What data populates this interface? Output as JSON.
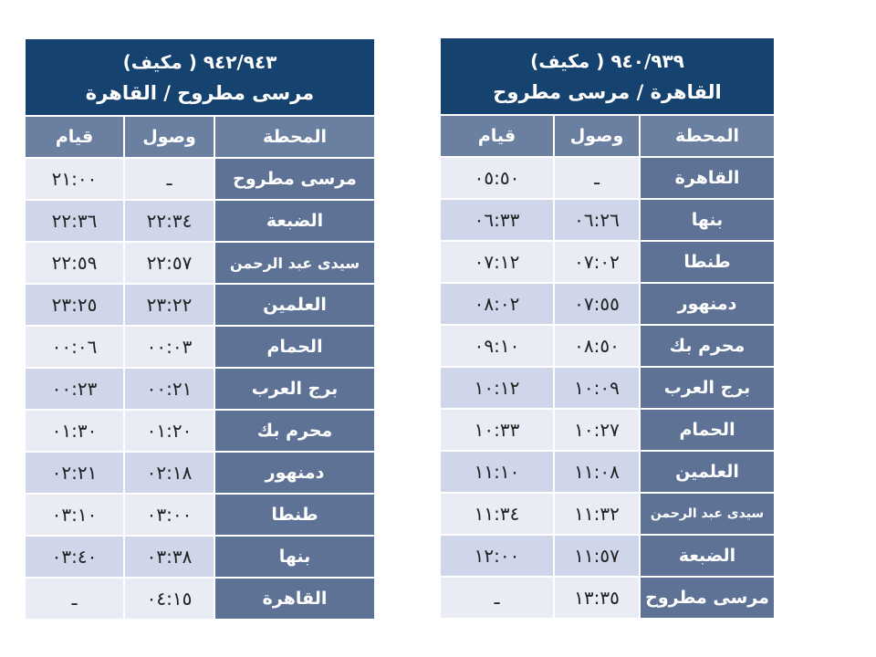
{
  "colors": {
    "title_bg": "#16426f",
    "column_header_bg": "#6b7fa1",
    "station_bg": "#5e7296",
    "row_light": "#e9ecf4",
    "row_dark": "#cfd6ea"
  },
  "left_table": {
    "train": "٩٤٢/٩٤٣ ( مكيف)",
    "route": "مرسى مطروح / القاهرة",
    "columns": [
      "المحطة",
      "وصول",
      "قيام"
    ],
    "rows": [
      [
        "مرسى مطروح",
        "ـ",
        "٢١:٠٠"
      ],
      [
        "الضبعة",
        "٢٢:٣٤",
        "٢٢:٣٦"
      ],
      [
        "سيدى عبد الرحمن",
        "٢٢:٥٧",
        "٢٢:٥٩"
      ],
      [
        "العلمين",
        "٢٣:٢٢",
        "٢٣:٢٥"
      ],
      [
        "الحمام",
        "٠٠:٠٣",
        "٠٠:٠٦"
      ],
      [
        "برج العرب",
        "٠٠:٢١",
        "٠٠:٢٣"
      ],
      [
        "محرم بك",
        "٠١:٢٠",
        "٠١:٣٠"
      ],
      [
        "دمنهور",
        "٠٢:١٨",
        "٠٢:٢١"
      ],
      [
        "طنطا",
        "٠٣:٠٠",
        "٠٣:١٠"
      ],
      [
        "بنها",
        "٠٣:٣٨",
        "٠٣:٤٠"
      ],
      [
        "القاهرة",
        "٠٤:١٥",
        "ـ"
      ]
    ]
  },
  "right_table": {
    "train": "٩٤٠/٩٣٩ ( مكيف)",
    "route": "القاهرة / مرسى مطروح",
    "columns": [
      "المحطة",
      "وصول",
      "قيام"
    ],
    "rows": [
      [
        "القاهرة",
        "ـ",
        "٠٥:٥٠"
      ],
      [
        "بنها",
        "٠٦:٢٦",
        "٠٦:٣٣"
      ],
      [
        "طنطا",
        "٠٧:٠٢",
        "٠٧:١٢"
      ],
      [
        "دمنهور",
        "٠٧:٥٥",
        "٠٨:٠٢"
      ],
      [
        "محرم بك",
        "٠٨:٥٠",
        "٠٩:١٠"
      ],
      [
        "برج العرب",
        "١٠:٠٩",
        "١٠:١٢"
      ],
      [
        "الحمام",
        "١٠:٢٧",
        "١٠:٣٣"
      ],
      [
        "العلمين",
        "١١:٠٨",
        "١١:١٠"
      ],
      [
        "سيدى عبد الرحمن",
        "١١:٣٢",
        "١١:٣٤"
      ],
      [
        "الضبعة",
        "١١:٥٧",
        "١٢:٠٠"
      ],
      [
        "مرسى مطروح",
        "١٣:٣٥",
        "ـ"
      ]
    ]
  }
}
